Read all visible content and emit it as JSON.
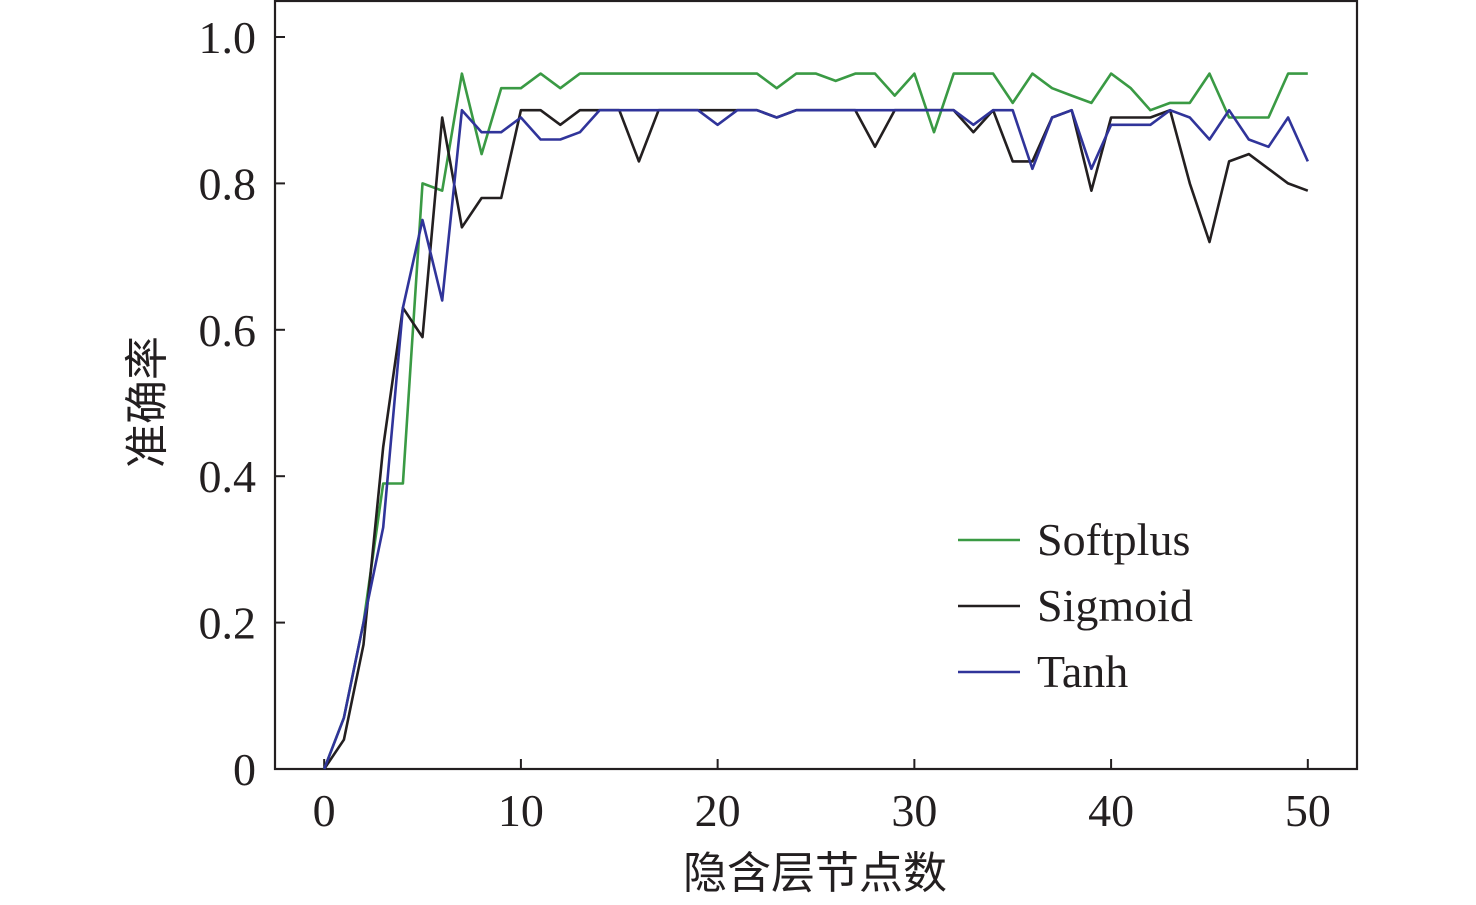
{
  "chart_data": {
    "type": "line",
    "xlabel": "隐含层节点数",
    "ylabel": "准确率",
    "xlim": [
      -2.5,
      52.5
    ],
    "ylim": [
      0,
      1.0
    ],
    "xticks": [
      0,
      10,
      20,
      30,
      40,
      50
    ],
    "yticks": [
      0,
      0.2,
      0.4,
      0.6,
      0.8,
      1.0
    ],
    "xtick_labels": [
      "0",
      "10",
      "20",
      "30",
      "40",
      "50"
    ],
    "ytick_labels": [
      "0",
      "0.2",
      "0.4",
      "0.6",
      "0.8",
      "1.0"
    ],
    "grid": false,
    "legend_position": "lower-right",
    "x": [
      0,
      1,
      2,
      3,
      4,
      5,
      6,
      7,
      8,
      9,
      10,
      11,
      12,
      13,
      14,
      15,
      16,
      17,
      18,
      19,
      20,
      21,
      22,
      23,
      24,
      25,
      26,
      27,
      28,
      29,
      30,
      31,
      32,
      33,
      34,
      35,
      36,
      37,
      38,
      39,
      40,
      41,
      42,
      43,
      44,
      45,
      46,
      47,
      48,
      49,
      50
    ],
    "series": [
      {
        "name": "Softplus",
        "color": "#3a9a44",
        "values": [
          0.0,
          0.07,
          0.2,
          0.39,
          0.39,
          0.8,
          0.79,
          0.95,
          0.84,
          0.93,
          0.93,
          0.95,
          0.93,
          0.95,
          0.95,
          0.95,
          0.95,
          0.95,
          0.95,
          0.95,
          0.95,
          0.95,
          0.95,
          0.93,
          0.95,
          0.95,
          0.94,
          0.95,
          0.95,
          0.92,
          0.95,
          0.87,
          0.95,
          0.95,
          0.95,
          0.91,
          0.95,
          0.93,
          0.92,
          0.91,
          0.95,
          0.93,
          0.9,
          0.91,
          0.91,
          0.95,
          0.89,
          0.89,
          0.89,
          0.95,
          0.95
        ]
      },
      {
        "name": "Sigmoid",
        "color": "#231f20",
        "values": [
          0.0,
          0.04,
          0.17,
          0.44,
          0.63,
          0.59,
          0.89,
          0.74,
          0.78,
          0.78,
          0.9,
          0.9,
          0.88,
          0.9,
          0.9,
          0.9,
          0.83,
          0.9,
          0.9,
          0.9,
          0.9,
          0.9,
          0.9,
          0.89,
          0.9,
          0.9,
          0.9,
          0.9,
          0.85,
          0.9,
          0.9,
          0.9,
          0.9,
          0.87,
          0.9,
          0.83,
          0.83,
          0.89,
          0.9,
          0.79,
          0.89,
          0.89,
          0.89,
          0.9,
          0.8,
          0.72,
          0.83,
          0.84,
          0.82,
          0.8,
          0.79
        ]
      },
      {
        "name": "Tanh",
        "color": "#30349a",
        "values": [
          0.0,
          0.07,
          0.2,
          0.33,
          0.63,
          0.75,
          0.64,
          0.9,
          0.87,
          0.87,
          0.89,
          0.86,
          0.86,
          0.87,
          0.9,
          0.9,
          0.9,
          0.9,
          0.9,
          0.9,
          0.88,
          0.9,
          0.9,
          0.89,
          0.9,
          0.9,
          0.9,
          0.9,
          0.9,
          0.9,
          0.9,
          0.9,
          0.9,
          0.88,
          0.9,
          0.9,
          0.82,
          0.89,
          0.9,
          0.82,
          0.88,
          0.88,
          0.88,
          0.9,
          0.89,
          0.86,
          0.9,
          0.86,
          0.85,
          0.89,
          0.83
        ]
      }
    ]
  }
}
